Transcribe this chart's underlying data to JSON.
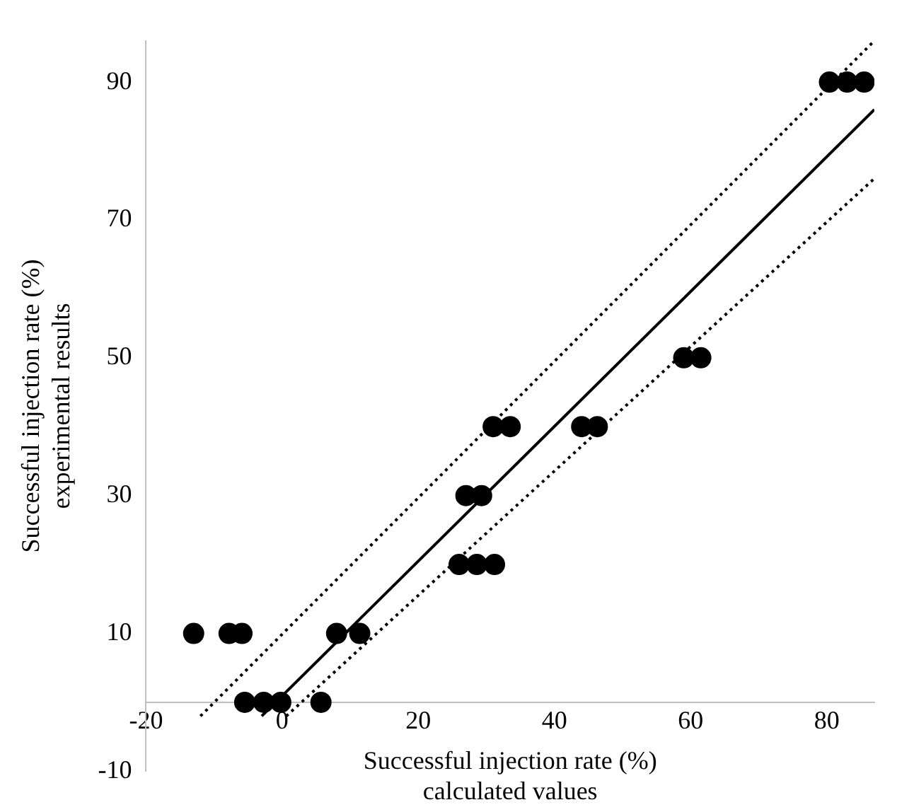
{
  "chart_data": {
    "type": "scatter",
    "xlabel": "Successful injection rate (%)\ncalculated values",
    "ylabel": "Successful injection rate (%)\nexperimental results",
    "xlim": [
      -20,
      87
    ],
    "xticks": [
      -20,
      0,
      20,
      40,
      60,
      80
    ],
    "ylim": [
      -10,
      96
    ],
    "yticks": [
      -10,
      10,
      30,
      50,
      70,
      90
    ],
    "grid": false,
    "legend": false,
    "marker": "circle",
    "series": [
      {
        "type": "scatter",
        "color": "#000000",
        "x": [
          -13,
          -7.8,
          -5.9,
          -5.5,
          -2.7,
          -0.2,
          5.7,
          8,
          11.4,
          26,
          28.6,
          31.2,
          27,
          29.3,
          31,
          33.5,
          44,
          46.3,
          59,
          61.5,
          80.4,
          83,
          85.5
        ],
        "values": [
          10,
          10,
          10,
          0,
          0,
          0,
          0,
          10,
          10,
          20,
          20,
          20,
          30,
          30,
          40,
          40,
          40,
          40,
          50,
          50,
          90,
          90,
          90
        ]
      },
      {
        "type": "line",
        "color": "#000000",
        "line_style": "solid",
        "marker": "none",
        "x": [
          -3,
          87
        ],
        "values": [
          -2,
          86
        ]
      },
      {
        "type": "line",
        "color": "#000000",
        "line_style": "dotted",
        "marker": "none",
        "x": [
          -12,
          87
        ],
        "values": [
          -2,
          96
        ]
      },
      {
        "type": "line",
        "color": "#000000",
        "line_style": "dotted",
        "marker": "none",
        "x": [
          0.6,
          87
        ],
        "values": [
          -2,
          76
        ]
      }
    ]
  }
}
